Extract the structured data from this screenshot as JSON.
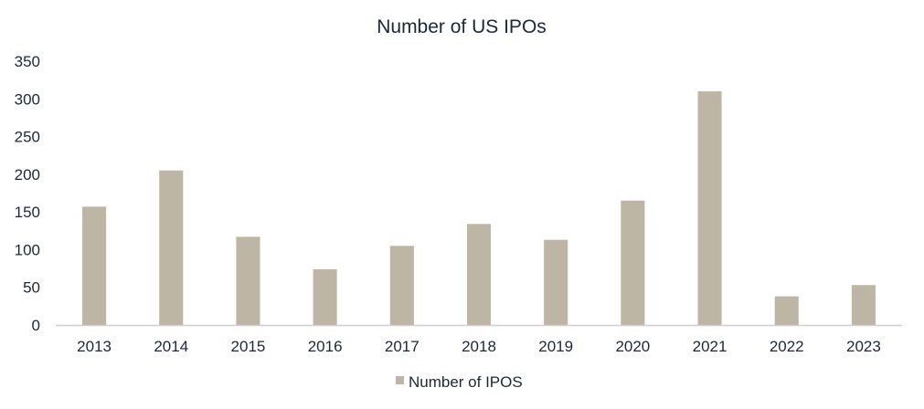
{
  "chart_data": {
    "type": "bar",
    "title": "Number of US IPOs",
    "xlabel": "",
    "ylabel": "",
    "categories": [
      "2013",
      "2014",
      "2015",
      "2016",
      "2017",
      "2018",
      "2019",
      "2020",
      "2021",
      "2022",
      "2023"
    ],
    "series": [
      {
        "name": "Number of IPOS",
        "color": "#bdb6a4",
        "values": [
          157,
          205,
          117,
          74,
          105,
          134,
          113,
          165,
          310,
          38,
          53
        ]
      }
    ],
    "ylim": [
      0,
      350
    ],
    "yticks": [
      0,
      50,
      100,
      150,
      200,
      250,
      300,
      350
    ],
    "ytick_labels": [
      "0",
      "50",
      "100",
      "150",
      "200",
      "250",
      "300",
      "350"
    ],
    "grid": false,
    "legend": {
      "position": "bottom",
      "entries": [
        "Number of IPOS"
      ]
    }
  }
}
